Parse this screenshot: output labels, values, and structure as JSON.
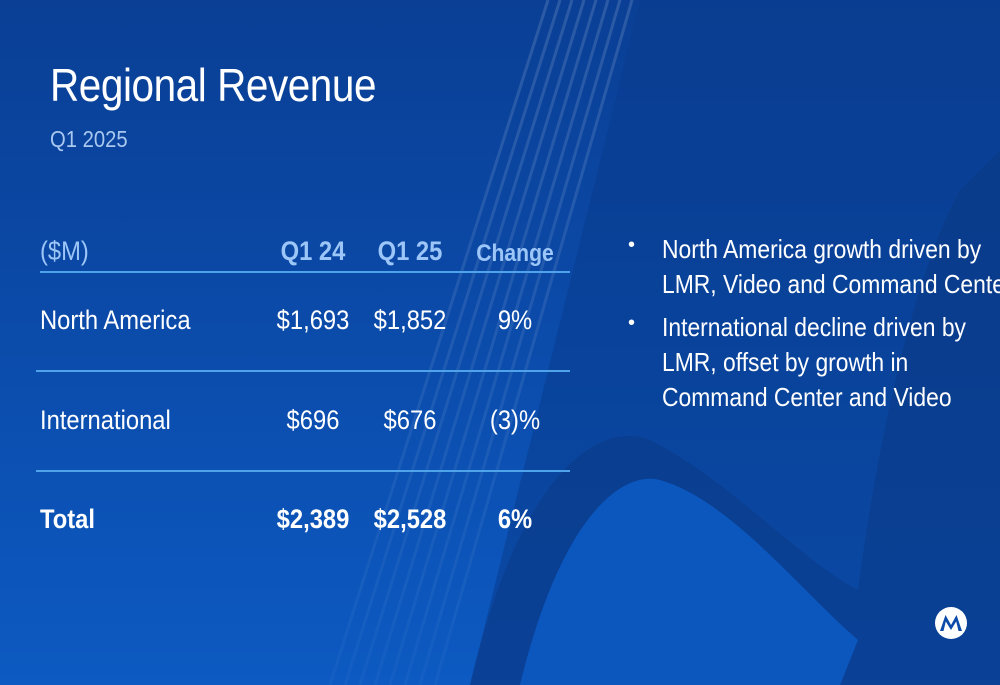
{
  "slide": {
    "title": "Regional Revenue",
    "subtitle": "Q1 2025"
  },
  "table": {
    "headers": {
      "unit": "($M)",
      "q1_24": "Q1 24",
      "q1_25": "Q1 25",
      "change": "Change"
    },
    "rows": [
      {
        "region": "North America",
        "q1_24": "$1,693",
        "q1_25": "$1,852",
        "change": "9%"
      },
      {
        "region": "International",
        "q1_24": "$696",
        "q1_25": "$676",
        "change": "(3)%"
      },
      {
        "region": "Total",
        "q1_24": "$2,389",
        "q1_25": "$2,528",
        "change": "6%"
      }
    ]
  },
  "bullets": [
    "North America growth driven by LMR, Video and Command Center",
    "International decline driven by LMR, offset by growth in Command Center and Video"
  ],
  "bullet_marker": "•",
  "logo": {
    "icon": "motorola-logo-icon"
  },
  "colors": {
    "background": "#0b4aa8",
    "header_text": "#9cc6f7",
    "rule": "#4fa3ea",
    "text": "#ffffff"
  }
}
